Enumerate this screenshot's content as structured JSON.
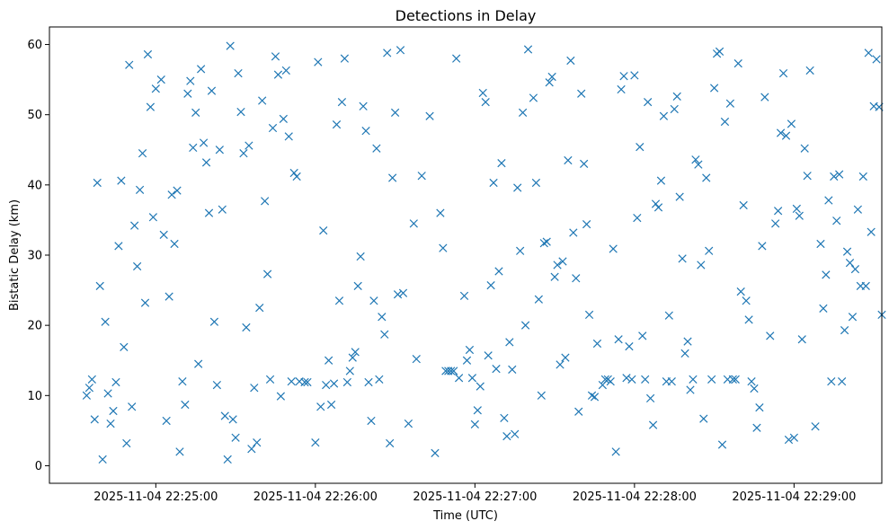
{
  "chart_data": {
    "type": "scatter",
    "title": "Detections in Delay",
    "xlabel": "Time (UTC)",
    "ylabel": "Bistatic Delay (km)",
    "marker": "x",
    "color": "#1f77b4",
    "grid": false,
    "legend": false,
    "xlim": [
      "2025-11-04 22:24:20",
      "2025-11-04 22:29:33"
    ],
    "ylim": [
      -2.5,
      62.5
    ],
    "xticks": [
      {
        "value": "2025-11-04 22:25:00",
        "label": "2025-11-04 22:25:00"
      },
      {
        "value": "2025-11-04 22:26:00",
        "label": "2025-11-04 22:26:00"
      },
      {
        "value": "2025-11-04 22:27:00",
        "label": "2025-11-04 22:27:00"
      },
      {
        "value": "2025-11-04 22:28:00",
        "label": "2025-11-04 22:28:00"
      },
      {
        "value": "2025-11-04 22:29:00",
        "label": "2025-11-04 22:29:00"
      }
    ],
    "yticks": [
      {
        "value": 0,
        "label": "0"
      },
      {
        "value": 10,
        "label": "10"
      },
      {
        "value": 20,
        "label": "20"
      },
      {
        "value": 30,
        "label": "30"
      },
      {
        "value": 40,
        "label": "40"
      },
      {
        "value": 50,
        "label": "50"
      },
      {
        "value": 60,
        "label": "60"
      }
    ],
    "points": [
      [
        "22:24:34",
        10.0
      ],
      [
        "22:24:35",
        11.1
      ],
      [
        "22:24:36",
        12.3
      ],
      [
        "22:24:37",
        6.6
      ],
      [
        "22:24:38",
        40.3
      ],
      [
        "22:24:39",
        25.6
      ],
      [
        "22:24:40",
        0.9
      ],
      [
        "22:24:41",
        20.5
      ],
      [
        "22:24:42",
        10.3
      ],
      [
        "22:24:43",
        6.0
      ],
      [
        "22:24:44",
        7.8
      ],
      [
        "22:24:45",
        11.9
      ],
      [
        "22:24:46",
        31.3
      ],
      [
        "22:24:47",
        40.6
      ],
      [
        "22:24:48",
        16.9
      ],
      [
        "22:24:49",
        3.2
      ],
      [
        "22:24:50",
        57.1
      ],
      [
        "22:24:51",
        8.4
      ],
      [
        "22:24:52",
        34.2
      ],
      [
        "22:24:53",
        28.4
      ],
      [
        "22:24:54",
        39.3
      ],
      [
        "22:24:55",
        44.5
      ],
      [
        "22:24:56",
        23.2
      ],
      [
        "22:24:57",
        58.6
      ],
      [
        "22:24:58",
        51.1
      ],
      [
        "22:24:59",
        35.4
      ],
      [
        "22:25:00",
        53.7
      ],
      [
        "22:25:02",
        55.0
      ],
      [
        "22:25:03",
        32.9
      ],
      [
        "22:25:04",
        6.4
      ],
      [
        "22:25:05",
        24.1
      ],
      [
        "22:25:06",
        38.6
      ],
      [
        "22:25:07",
        31.6
      ],
      [
        "22:25:08",
        39.2
      ],
      [
        "22:25:09",
        2.0
      ],
      [
        "22:25:10",
        12.0
      ],
      [
        "22:25:11",
        8.7
      ],
      [
        "22:25:12",
        53.0
      ],
      [
        "22:25:13",
        54.8
      ],
      [
        "22:25:14",
        45.3
      ],
      [
        "22:25:15",
        50.3
      ],
      [
        "22:25:16",
        14.5
      ],
      [
        "22:25:17",
        56.5
      ],
      [
        "22:25:18",
        46.0
      ],
      [
        "22:25:19",
        43.2
      ],
      [
        "22:25:20",
        36.0
      ],
      [
        "22:25:21",
        53.4
      ],
      [
        "22:25:22",
        20.5
      ],
      [
        "22:25:23",
        11.5
      ],
      [
        "22:25:24",
        45.0
      ],
      [
        "22:25:25",
        36.5
      ],
      [
        "22:25:26",
        7.1
      ],
      [
        "22:25:27",
        0.9
      ],
      [
        "22:25:28",
        59.8
      ],
      [
        "22:25:29",
        6.6
      ],
      [
        "22:25:30",
        4.0
      ],
      [
        "22:25:31",
        55.9
      ],
      [
        "22:25:32",
        50.4
      ],
      [
        "22:25:33",
        44.5
      ],
      [
        "22:25:34",
        19.7
      ],
      [
        "22:25:35",
        45.6
      ],
      [
        "22:25:36",
        2.4
      ],
      [
        "22:25:37",
        11.1
      ],
      [
        "22:25:38",
        3.3
      ],
      [
        "22:25:39",
        22.5
      ],
      [
        "22:25:40",
        52.0
      ],
      [
        "22:25:41",
        37.7
      ],
      [
        "22:25:42",
        27.3
      ],
      [
        "22:25:43",
        12.3
      ],
      [
        "22:25:44",
        48.1
      ],
      [
        "22:25:45",
        58.3
      ],
      [
        "22:25:46",
        55.7
      ],
      [
        "22:25:47",
        9.9
      ],
      [
        "22:25:48",
        49.4
      ],
      [
        "22:25:49",
        56.3
      ],
      [
        "22:25:50",
        46.9
      ],
      [
        "22:25:51",
        12.0
      ],
      [
        "22:25:52",
        41.7
      ],
      [
        "22:25:53",
        41.2
      ],
      [
        "22:25:54",
        12.0
      ],
      [
        "22:25:56",
        11.9
      ],
      [
        "22:25:57",
        11.9
      ],
      [
        "22:26:00",
        3.3
      ],
      [
        "22:26:01",
        57.5
      ],
      [
        "22:26:02",
        8.4
      ],
      [
        "22:26:03",
        33.5
      ],
      [
        "22:26:04",
        11.5
      ],
      [
        "22:26:05",
        15.0
      ],
      [
        "22:26:06",
        8.7
      ],
      [
        "22:26:07",
        11.7
      ],
      [
        "22:26:08",
        48.6
      ],
      [
        "22:26:09",
        23.5
      ],
      [
        "22:26:10",
        51.8
      ],
      [
        "22:26:11",
        58.0
      ],
      [
        "22:26:12",
        11.9
      ],
      [
        "22:26:13",
        13.5
      ],
      [
        "22:26:14",
        15.4
      ],
      [
        "22:26:15",
        16.2
      ],
      [
        "22:26:16",
        25.6
      ],
      [
        "22:26:17",
        29.8
      ],
      [
        "22:26:18",
        51.2
      ],
      [
        "22:26:19",
        47.7
      ],
      [
        "22:26:20",
        11.9
      ],
      [
        "22:26:21",
        6.4
      ],
      [
        "22:26:22",
        23.5
      ],
      [
        "22:26:23",
        45.2
      ],
      [
        "22:26:24",
        12.3
      ],
      [
        "22:26:25",
        21.2
      ],
      [
        "22:26:26",
        18.7
      ],
      [
        "22:26:27",
        58.8
      ],
      [
        "22:26:28",
        3.2
      ],
      [
        "22:26:29",
        41.0
      ],
      [
        "22:26:30",
        50.3
      ],
      [
        "22:26:31",
        24.4
      ],
      [
        "22:26:32",
        59.2
      ],
      [
        "22:26:33",
        24.6
      ],
      [
        "22:26:35",
        6.0
      ],
      [
        "22:26:37",
        34.5
      ],
      [
        "22:26:38",
        15.2
      ],
      [
        "22:26:40",
        41.3
      ],
      [
        "22:26:43",
        49.8
      ],
      [
        "22:26:45",
        1.8
      ],
      [
        "22:26:47",
        36.0
      ],
      [
        "22:26:48",
        31.0
      ],
      [
        "22:26:49",
        13.5
      ],
      [
        "22:26:50",
        13.5
      ],
      [
        "22:26:51",
        13.5
      ],
      [
        "22:26:52",
        13.5
      ],
      [
        "22:26:53",
        58.0
      ],
      [
        "22:26:54",
        12.5
      ],
      [
        "22:26:56",
        24.2
      ],
      [
        "22:26:57",
        15.0
      ],
      [
        "22:26:58",
        16.5
      ],
      [
        "22:26:59",
        12.5
      ],
      [
        "22:27:00",
        5.9
      ],
      [
        "22:27:01",
        7.9
      ],
      [
        "22:27:02",
        11.3
      ],
      [
        "22:27:03",
        53.1
      ],
      [
        "22:27:04",
        51.8
      ],
      [
        "22:27:05",
        15.7
      ],
      [
        "22:27:06",
        25.7
      ],
      [
        "22:27:07",
        40.3
      ],
      [
        "22:27:08",
        13.8
      ],
      [
        "22:27:09",
        27.7
      ],
      [
        "22:27:10",
        43.1
      ],
      [
        "22:27:11",
        6.8
      ],
      [
        "22:27:12",
        4.2
      ],
      [
        "22:27:13",
        17.6
      ],
      [
        "22:27:14",
        13.7
      ],
      [
        "22:27:15",
        4.5
      ],
      [
        "22:27:16",
        39.6
      ],
      [
        "22:27:17",
        30.6
      ],
      [
        "22:27:18",
        50.3
      ],
      [
        "22:27:19",
        20.0
      ],
      [
        "22:27:20",
        59.3
      ],
      [
        "22:27:22",
        52.4
      ],
      [
        "22:27:23",
        40.3
      ],
      [
        "22:27:24",
        23.7
      ],
      [
        "22:27:25",
        10.0
      ],
      [
        "22:27:26",
        31.7
      ],
      [
        "22:27:27",
        31.9
      ],
      [
        "22:27:28",
        54.6
      ],
      [
        "22:27:29",
        55.4
      ],
      [
        "22:27:30",
        26.9
      ],
      [
        "22:27:31",
        28.6
      ],
      [
        "22:27:32",
        14.4
      ],
      [
        "22:27:33",
        29.1
      ],
      [
        "22:27:34",
        15.4
      ],
      [
        "22:27:35",
        43.5
      ],
      [
        "22:27:36",
        57.7
      ],
      [
        "22:27:37",
        33.2
      ],
      [
        "22:27:38",
        26.7
      ],
      [
        "22:27:39",
        7.7
      ],
      [
        "22:27:40",
        53.0
      ],
      [
        "22:27:41",
        43.0
      ],
      [
        "22:27:42",
        34.4
      ],
      [
        "22:27:43",
        21.5
      ],
      [
        "22:27:44",
        10.0
      ],
      [
        "22:27:45",
        9.8
      ],
      [
        "22:27:46",
        17.4
      ],
      [
        "22:27:48",
        11.5
      ],
      [
        "22:27:49",
        12.3
      ],
      [
        "22:27:50",
        12.3
      ],
      [
        "22:27:51",
        12.0
      ],
      [
        "22:27:52",
        30.9
      ],
      [
        "22:27:53",
        2.0
      ],
      [
        "22:27:54",
        18.0
      ],
      [
        "22:27:55",
        53.6
      ],
      [
        "22:27:56",
        55.5
      ],
      [
        "22:27:57",
        12.5
      ],
      [
        "22:27:58",
        17.0
      ],
      [
        "22:27:59",
        12.3
      ],
      [
        "22:28:00",
        55.6
      ],
      [
        "22:28:01",
        35.3
      ],
      [
        "22:28:02",
        45.4
      ],
      [
        "22:28:03",
        18.5
      ],
      [
        "22:28:04",
        12.3
      ],
      [
        "22:28:05",
        51.8
      ],
      [
        "22:28:06",
        9.6
      ],
      [
        "22:28:07",
        5.8
      ],
      [
        "22:28:08",
        37.3
      ],
      [
        "22:28:09",
        36.8
      ],
      [
        "22:28:10",
        40.6
      ],
      [
        "22:28:11",
        49.8
      ],
      [
        "22:28:12",
        12.0
      ],
      [
        "22:28:13",
        21.4
      ],
      [
        "22:28:14",
        12.0
      ],
      [
        "22:28:15",
        50.8
      ],
      [
        "22:28:16",
        52.6
      ],
      [
        "22:28:17",
        38.3
      ],
      [
        "22:28:18",
        29.5
      ],
      [
        "22:28:19",
        16.0
      ],
      [
        "22:28:20",
        17.7
      ],
      [
        "22:28:21",
        10.8
      ],
      [
        "22:28:22",
        12.3
      ],
      [
        "22:28:23",
        43.6
      ],
      [
        "22:28:24",
        42.9
      ],
      [
        "22:28:25",
        28.6
      ],
      [
        "22:28:26",
        6.7
      ],
      [
        "22:28:27",
        41.0
      ],
      [
        "22:28:28",
        30.6
      ],
      [
        "22:28:29",
        12.3
      ],
      [
        "22:28:30",
        53.8
      ],
      [
        "22:28:31",
        58.7
      ],
      [
        "22:28:32",
        59.0
      ],
      [
        "22:28:33",
        3.0
      ],
      [
        "22:28:34",
        49.0
      ],
      [
        "22:28:35",
        12.3
      ],
      [
        "22:28:36",
        51.6
      ],
      [
        "22:28:37",
        12.3
      ],
      [
        "22:28:38",
        12.3
      ],
      [
        "22:28:39",
        57.3
      ],
      [
        "22:28:40",
        24.8
      ],
      [
        "22:28:41",
        37.1
      ],
      [
        "22:28:42",
        23.5
      ],
      [
        "22:28:43",
        20.8
      ],
      [
        "22:28:44",
        12.0
      ],
      [
        "22:28:45",
        11.0
      ],
      [
        "22:28:46",
        5.4
      ],
      [
        "22:28:47",
        8.3
      ],
      [
        "22:28:48",
        31.3
      ],
      [
        "22:28:49",
        52.5
      ],
      [
        "22:28:51",
        18.5
      ],
      [
        "22:28:53",
        34.5
      ],
      [
        "22:28:54",
        36.3
      ],
      [
        "22:28:55",
        47.4
      ],
      [
        "22:28:56",
        55.9
      ],
      [
        "22:28:57",
        47.0
      ],
      [
        "22:28:58",
        3.7
      ],
      [
        "22:28:59",
        48.7
      ],
      [
        "22:29:00",
        4.0
      ],
      [
        "22:29:01",
        36.6
      ],
      [
        "22:29:02",
        35.6
      ],
      [
        "22:29:03",
        18.0
      ],
      [
        "22:29:04",
        45.2
      ],
      [
        "22:29:05",
        41.3
      ],
      [
        "22:29:06",
        56.3
      ],
      [
        "22:29:08",
        5.6
      ],
      [
        "22:29:10",
        31.6
      ],
      [
        "22:29:11",
        22.4
      ],
      [
        "22:29:12",
        27.2
      ],
      [
        "22:29:13",
        37.8
      ],
      [
        "22:29:14",
        12.0
      ],
      [
        "22:29:15",
        41.2
      ],
      [
        "22:29:16",
        34.9
      ],
      [
        "22:29:17",
        41.5
      ],
      [
        "22:29:18",
        12.0
      ],
      [
        "22:29:19",
        19.3
      ],
      [
        "22:29:20",
        30.5
      ],
      [
        "22:29:21",
        28.9
      ],
      [
        "22:29:22",
        21.2
      ],
      [
        "22:29:23",
        28.0
      ],
      [
        "22:29:24",
        36.5
      ],
      [
        "22:29:25",
        25.6
      ],
      [
        "22:29:26",
        41.2
      ],
      [
        "22:29:27",
        25.6
      ],
      [
        "22:29:28",
        58.8
      ],
      [
        "22:29:29",
        33.3
      ],
      [
        "22:29:30",
        51.2
      ],
      [
        "22:29:31",
        57.9
      ],
      [
        "22:29:32",
        51.1
      ],
      [
        "22:29:33",
        21.5
      ]
    ]
  }
}
